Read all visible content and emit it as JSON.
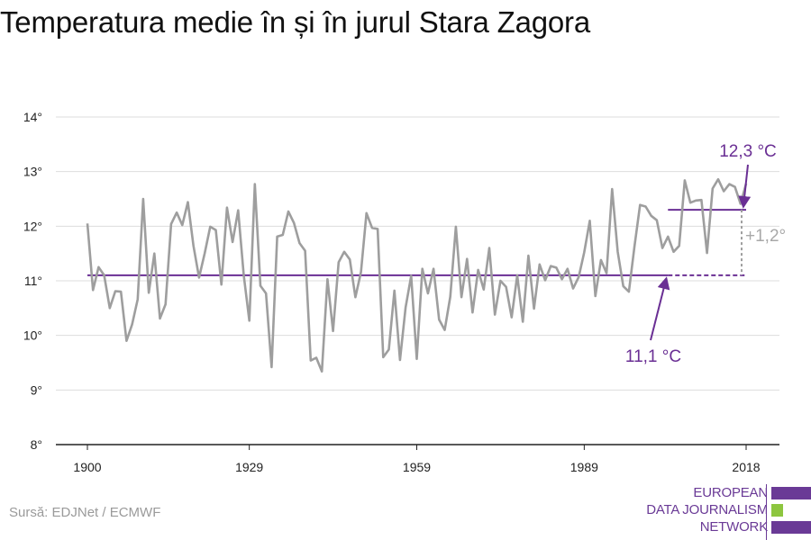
{
  "title": "Temperatura medie în și în jurul Stara Zagora",
  "source": "Sursă: EDJNet / ECMWF",
  "logo": {
    "lines": [
      "EUROPEAN",
      "DATA JOURNALISM",
      "NETWORK"
    ],
    "colors": [
      "#6a3a96",
      "#8dc63f",
      "#6a3a96"
    ]
  },
  "colors": {
    "series": "#9e9e9e",
    "accent": "#6a2f94",
    "grid": "#dddddd",
    "axis": "#222222"
  },
  "chart_data": {
    "type": "line",
    "title": "Temperatura medie în și în jurul Stara Zagora",
    "xlabel": "",
    "ylabel": "",
    "xlim": [
      1900,
      2018
    ],
    "ylim": [
      8,
      14
    ],
    "grid": true,
    "x_ticks": [
      1900,
      1929,
      1959,
      1989,
      2018
    ],
    "x_tick_labels": [
      "1900",
      "1929",
      "1959",
      "1989",
      "2018"
    ],
    "y_ticks": [
      8,
      9,
      10,
      11,
      12,
      13,
      14
    ],
    "y_tick_labels": [
      "8°",
      "9°",
      "10°",
      "11°",
      "12°",
      "13°",
      "14°"
    ],
    "series": [
      {
        "x_start": 1900,
        "x_end": 2018,
        "values": [
          12.05,
          10.83,
          11.25,
          11.1,
          10.5,
          10.81,
          10.8,
          9.9,
          10.2,
          10.66,
          12.5,
          10.78,
          11.5,
          10.31,
          10.57,
          12.04,
          12.25,
          12.02,
          12.44,
          11.64,
          11.06,
          11.5,
          11.99,
          11.93,
          10.93,
          12.34,
          11.71,
          12.29,
          11.1,
          10.27,
          12.77,
          10.91,
          10.77,
          9.42,
          11.81,
          11.84,
          12.27,
          12.06,
          11.69,
          11.55,
          9.54,
          9.59,
          9.34,
          11.03,
          10.08,
          11.34,
          11.53,
          11.39,
          10.7,
          11.16,
          12.24,
          11.97,
          11.95,
          9.6,
          9.74,
          10.82,
          9.55,
          10.51,
          11.09,
          9.57,
          11.22,
          10.77,
          11.22,
          10.29,
          10.1,
          10.71,
          11.99,
          10.7,
          11.4,
          10.42,
          11.2,
          10.84,
          11.6,
          10.38,
          11.0,
          10.89,
          10.33,
          11.1,
          10.25,
          11.46,
          10.49,
          11.3,
          11.01,
          11.27,
          11.24,
          11.03,
          11.22,
          10.86,
          11.07,
          11.52,
          12.1,
          10.72,
          11.38,
          11.14,
          12.68,
          11.53,
          10.9,
          10.8,
          11.63,
          12.39,
          12.36,
          12.19,
          12.11,
          11.6,
          11.81,
          11.53,
          11.64,
          12.84,
          12.43,
          12.47,
          12.48,
          11.51,
          12.69,
          12.86,
          12.64,
          12.77,
          12.72,
          12.41,
          12.78
        ]
      }
    ],
    "reference_lines": [
      {
        "label": "11,1 °C",
        "value": 11.1
      },
      {
        "label": "12,3 °C",
        "value": 12.3
      }
    ],
    "annotations": [
      {
        "text": "12,3 °C"
      },
      {
        "text": "11,1 °C"
      },
      {
        "text": "+1,2°"
      }
    ]
  }
}
